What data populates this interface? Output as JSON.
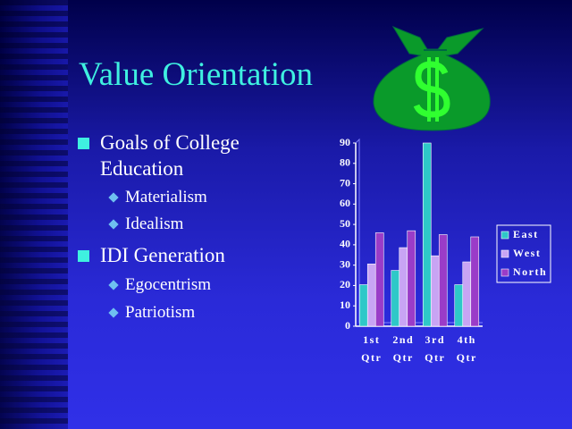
{
  "title": "Value Orientation",
  "bullets": [
    {
      "text": "Goals of College Education",
      "sub": [
        "Materialism",
        "Idealism"
      ]
    },
    {
      "text": "IDI Generation",
      "sub": [
        "Egocentrism",
        "Patriotism"
      ]
    }
  ],
  "chart_data": {
    "type": "bar",
    "categories": [
      "1st Qtr",
      "2nd Qtr",
      "3rd Qtr",
      "4th Qtr"
    ],
    "series": [
      {
        "name": "East",
        "color": "#2ec8c8",
        "values": [
          20.4,
          27.4,
          90,
          20.4
        ]
      },
      {
        "name": "West",
        "color": "#c8a4f4",
        "values": [
          30.6,
          38.6,
          34.6,
          31.6
        ]
      },
      {
        "name": "North",
        "color": "#9a3cc8",
        "values": [
          45.9,
          46.9,
          45,
          43.9
        ]
      }
    ],
    "ylim": [
      0,
      90
    ],
    "yticks": [
      0,
      10,
      20,
      30,
      40,
      50,
      60,
      70,
      80,
      90
    ],
    "legend": "right"
  }
}
